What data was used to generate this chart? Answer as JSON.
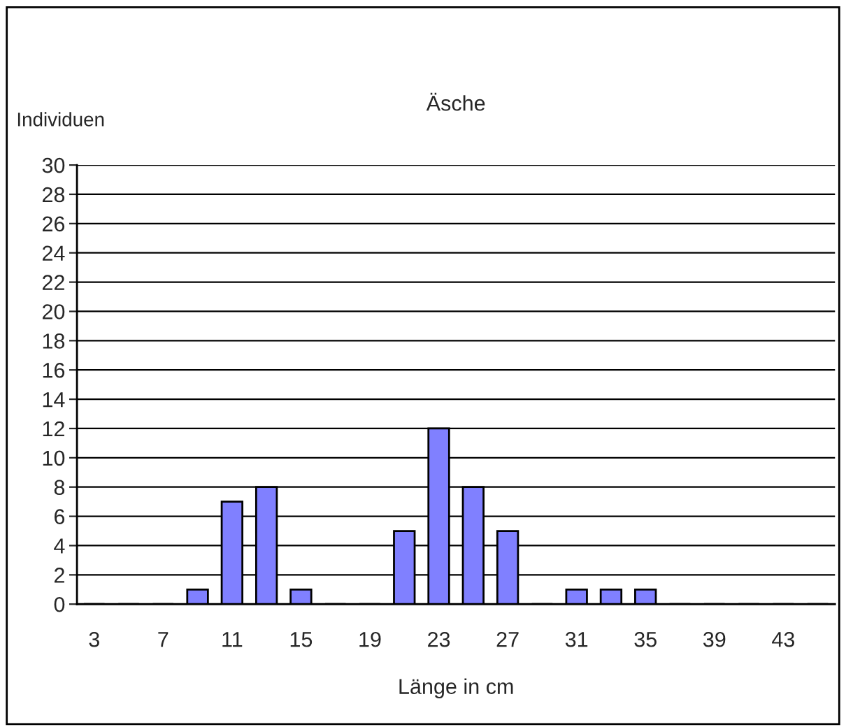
{
  "chart_data": {
    "type": "bar",
    "title": "Äsche",
    "ylabel": "Individuen",
    "xlabel": "Länge in cm",
    "categories": [
      "3",
      null,
      "7",
      null,
      "11",
      null,
      "15",
      null,
      "19",
      null,
      "23",
      null,
      "27",
      null,
      "31",
      null,
      "35",
      null,
      "39",
      null,
      "43",
      null
    ],
    "values": [
      0,
      0,
      0,
      1,
      7,
      8,
      1,
      0,
      0,
      5,
      12,
      8,
      5,
      0,
      1,
      1,
      1,
      0,
      0,
      0,
      0,
      0
    ],
    "color": "#8080ff",
    "ylim": [
      0,
      30
    ],
    "yticks": [
      0,
      2,
      4,
      6,
      8,
      10,
      12,
      14,
      16,
      18,
      20,
      22,
      24,
      26,
      28,
      30
    ],
    "grid": "y"
  }
}
